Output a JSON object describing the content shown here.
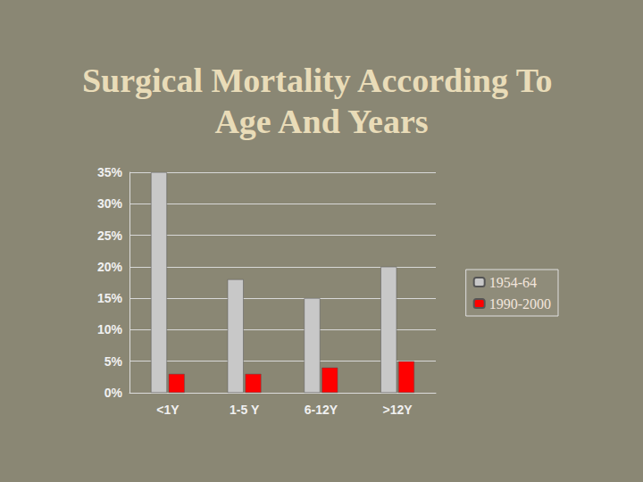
{
  "chart_data": {
    "type": "bar",
    "title": "Surgical Mortality According To Age And Years",
    "categories": [
      "<1Y",
      "1-5 Y",
      "6-12Y",
      ">12Y"
    ],
    "series": [
      {
        "name": "1954-64",
        "color": "#c8c8c8",
        "values": [
          35,
          18,
          15,
          20
        ]
      },
      {
        "name": "1990-2000",
        "color": "#ff0000",
        "values": [
          3,
          3,
          4,
          5
        ]
      }
    ],
    "ylim": [
      0,
      35
    ],
    "yticks": [
      {
        "value": 0,
        "label": "0%"
      },
      {
        "value": 5,
        "label": "5%"
      },
      {
        "value": 10,
        "label": "10%"
      },
      {
        "value": 15,
        "label": "15%"
      },
      {
        "value": 20,
        "label": "20%"
      },
      {
        "value": 25,
        "label": "25%"
      },
      {
        "value": 30,
        "label": "30%"
      },
      {
        "value": 35,
        "label": "35%"
      }
    ],
    "grid": true,
    "legend": "right"
  }
}
